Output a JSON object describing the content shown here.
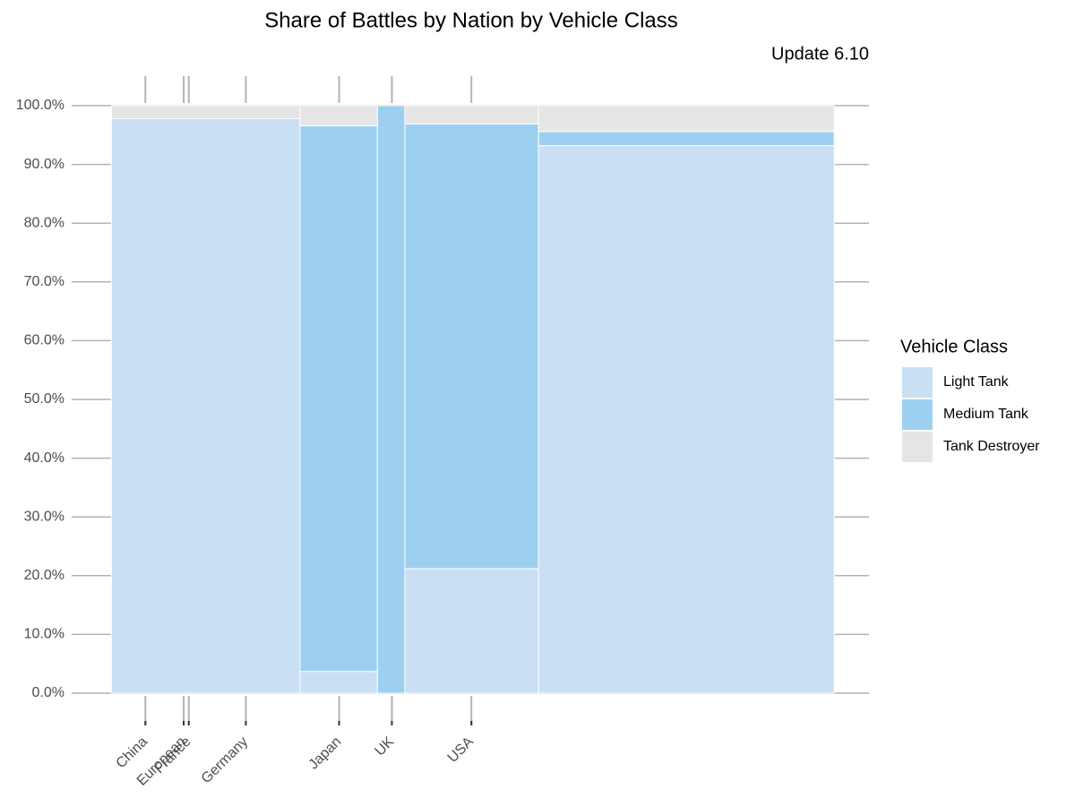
{
  "chart_data": {
    "type": "mosaic",
    "title": "Share of Battles by Nation by Vehicle Class",
    "subtitle": "Update 6.10",
    "legend_title": "Vehicle Class",
    "widths": [
      0.261,
      0.107,
      0.038,
      0.185,
      0.409
    ],
    "series": [
      {
        "name": "Light Tank",
        "color": "#c9dff3",
        "values": [
          97.8,
          3.7,
          0,
          21.2,
          93.2
        ]
      },
      {
        "name": "Medium Tank",
        "color": "#9dd0f0",
        "values": [
          0,
          92.9,
          100,
          75.7,
          2.4
        ]
      },
      {
        "name": "Tank Destroyer",
        "color": "#e5e5e5",
        "values": [
          2.2,
          3.4,
          0,
          3.1,
          4.4
        ]
      }
    ],
    "xlim": [
      -0.055,
      1.048
    ],
    "xticks": [
      {
        "value": 0.047,
        "label": "China"
      },
      {
        "value": 0.1,
        "label": "European"
      },
      {
        "value": 0.107,
        "label": "France"
      },
      {
        "value": 0.186,
        "label": "Germany"
      },
      {
        "value": 0.315,
        "label": "Japan"
      },
      {
        "value": 0.388,
        "label": "UK"
      },
      {
        "value": 0.498,
        "label": "USA"
      }
    ],
    "ylim": [
      0,
      100
    ],
    "yticks": [
      {
        "value": 0,
        "label": "0.0%"
      },
      {
        "value": 10,
        "label": "10.0%"
      },
      {
        "value": 20,
        "label": "20.0%"
      },
      {
        "value": 30,
        "label": "30.0%"
      },
      {
        "value": 40,
        "label": "40.0%"
      },
      {
        "value": 50,
        "label": "50.0%"
      },
      {
        "value": 60,
        "label": "60.0%"
      },
      {
        "value": 70,
        "label": "70.0%"
      },
      {
        "value": 80,
        "label": "80.0%"
      },
      {
        "value": 90,
        "label": "90.0%"
      },
      {
        "value": 100,
        "label": "100.0%"
      }
    ],
    "grid": true
  }
}
